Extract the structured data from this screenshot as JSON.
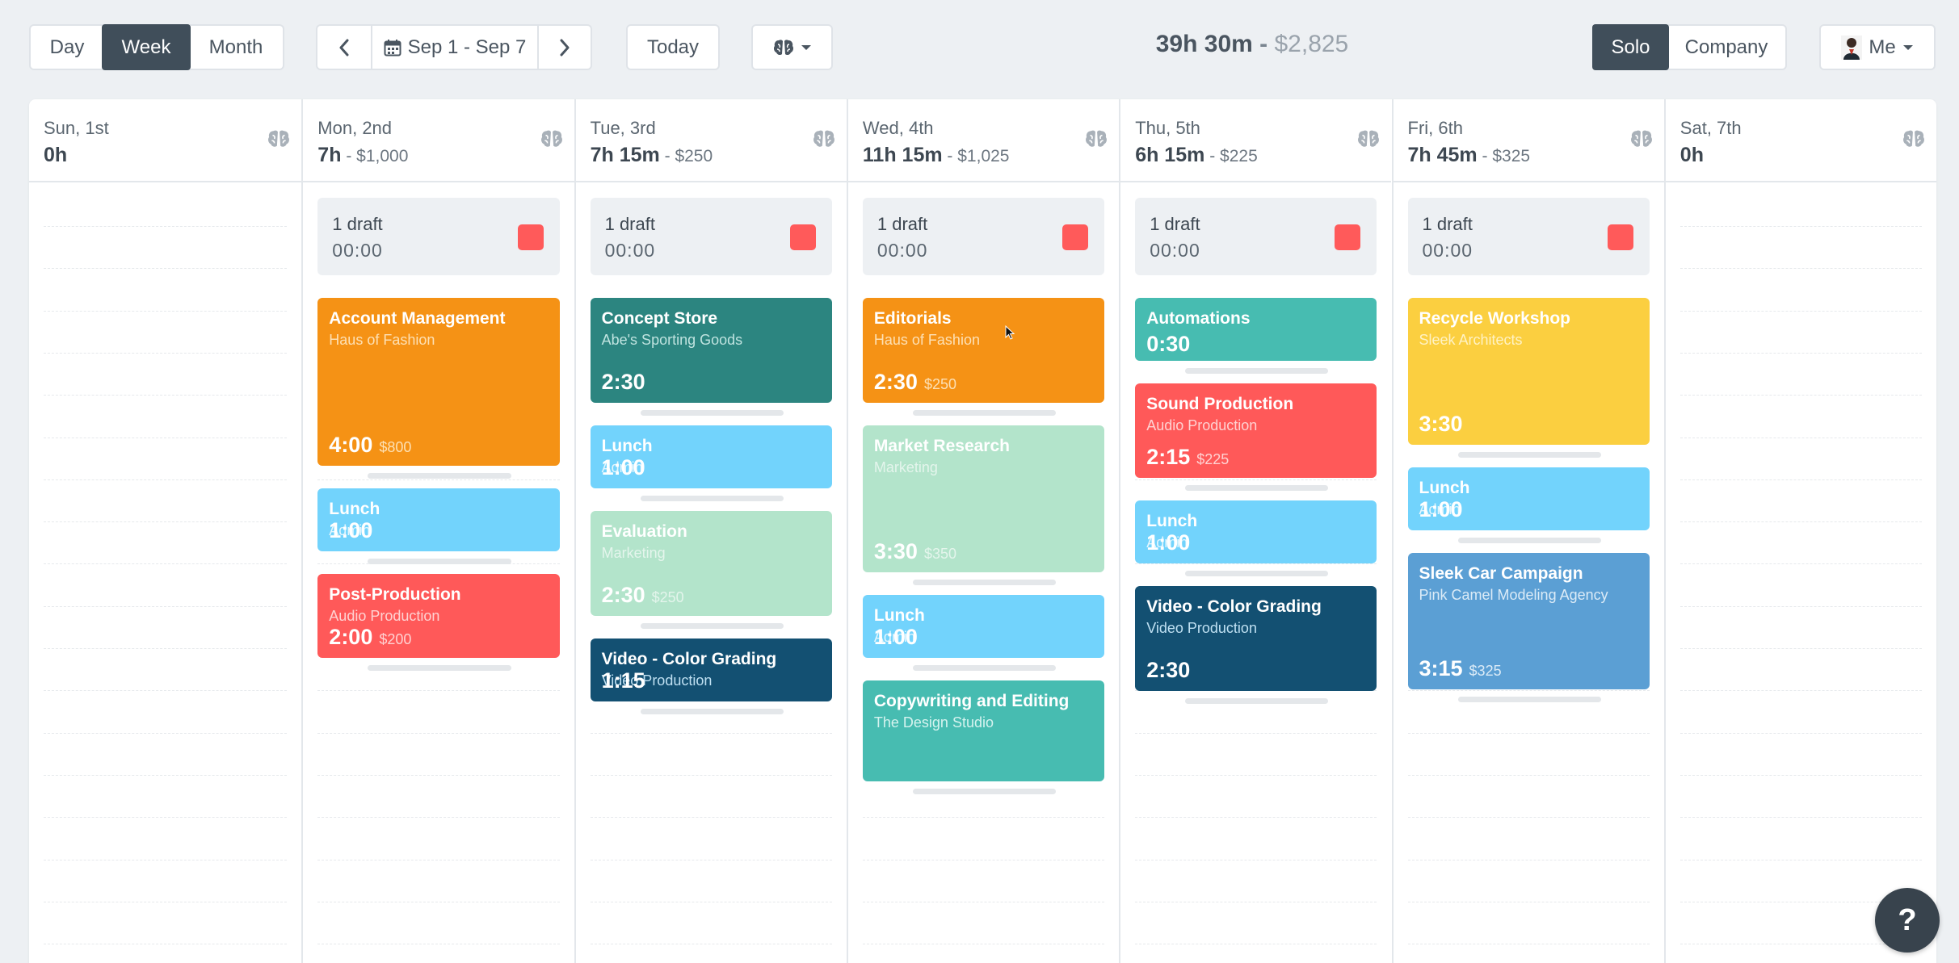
{
  "toolbar": {
    "views": [
      "Day",
      "Week",
      "Month"
    ],
    "active_view": "Week",
    "date_range": "Sep 1 - Sep 7",
    "today_label": "Today",
    "summary_hours": "39h 30m",
    "summary_sep": " - ",
    "summary_money": "$2,825",
    "modes": [
      "Solo",
      "Company"
    ],
    "active_mode": "Solo",
    "user_label": "Me"
  },
  "colors": {
    "orange": "#f59215",
    "teal_dark": "#2c8580",
    "light_blue": "#72d3fc",
    "mint": "#b3e4cb",
    "navy": "#135072",
    "red": "#ff5959",
    "teal": "#47bcb1",
    "yellow": "#fbcf40",
    "blue": "#5b9fd4"
  },
  "days": [
    {
      "name": "Sun, 1st",
      "hours": "0h",
      "money": "",
      "draft": null,
      "events": []
    },
    {
      "name": "Mon, 2nd",
      "hours": "7h",
      "money": "$1,000",
      "draft": {
        "label": "1 draft",
        "time": "00:00"
      },
      "events": [
        {
          "title": "Account Management",
          "client": "Haus of Fashion",
          "duration": "4:00",
          "amount": "$800",
          "color": "orange"
        },
        {
          "title": "Lunch",
          "client": "Admin",
          "duration": "1:00",
          "amount": "",
          "color": "light_blue"
        },
        {
          "title": "Post-Production",
          "client": "Audio Production",
          "duration": "2:00",
          "amount": "$200",
          "color": "red"
        }
      ]
    },
    {
      "name": "Tue, 3rd",
      "hours": "7h 15m",
      "money": "$250",
      "draft": {
        "label": "1 draft",
        "time": "00:00"
      },
      "events": [
        {
          "title": "Concept Store",
          "client": "Abe's Sporting Goods",
          "duration": "2:30",
          "amount": "",
          "color": "teal_dark"
        },
        {
          "title": "Lunch",
          "client": "Admin",
          "duration": "1:00",
          "amount": "",
          "color": "light_blue"
        },
        {
          "title": "Evaluation",
          "client": "Marketing",
          "duration": "2:30",
          "amount": "$250",
          "color": "mint"
        },
        {
          "title": "Video - Color Grading",
          "client": "Video Production",
          "duration": "1:15",
          "amount": "",
          "color": "navy"
        }
      ]
    },
    {
      "name": "Wed, 4th",
      "hours": "11h 15m",
      "money": "$1,025",
      "draft": {
        "label": "1 draft",
        "time": "00:00"
      },
      "events": [
        {
          "title": "Editorials",
          "client": "Haus of Fashion",
          "duration": "2:30",
          "amount": "$250",
          "color": "orange"
        },
        {
          "title": "Market Research",
          "client": "Marketing",
          "duration": "3:30",
          "amount": "$350",
          "color": "mint"
        },
        {
          "title": "Lunch",
          "client": "Admin",
          "duration": "1:00",
          "amount": "",
          "color": "light_blue"
        },
        {
          "title": "Copywriting and Editing",
          "client": "The Design Studio",
          "duration": "",
          "amount": "",
          "color": "teal"
        }
      ]
    },
    {
      "name": "Thu, 5th",
      "hours": "6h 15m",
      "money": "$225",
      "draft": {
        "label": "1 draft",
        "time": "00:00"
      },
      "events": [
        {
          "title": "Automations",
          "client": "",
          "duration": "0:30",
          "amount": "",
          "color": "teal"
        },
        {
          "title": "Sound Production",
          "client": "Audio Production",
          "duration": "2:15",
          "amount": "$225",
          "color": "red"
        },
        {
          "title": "Lunch",
          "client": "Admin",
          "duration": "1:00",
          "amount": "",
          "color": "light_blue"
        },
        {
          "title": "Video - Color Grading",
          "client": "Video Production",
          "duration": "2:30",
          "amount": "",
          "color": "navy"
        }
      ]
    },
    {
      "name": "Fri, 6th",
      "hours": "7h 45m",
      "money": "$325",
      "draft": {
        "label": "1 draft",
        "time": "00:00"
      },
      "events": [
        {
          "title": "Recycle Workshop",
          "client": "Sleek Architects",
          "duration": "3:30",
          "amount": "",
          "color": "yellow"
        },
        {
          "title": "Lunch",
          "client": "Admin",
          "duration": "1:00",
          "amount": "",
          "color": "light_blue"
        },
        {
          "title": "Sleek Car Campaign",
          "client": "Pink Camel Modeling Agency",
          "duration": "3:15",
          "amount": "$325",
          "color": "blue"
        }
      ]
    },
    {
      "name": "Sat, 7th",
      "hours": "0h",
      "money": "",
      "draft": null,
      "events": []
    }
  ],
  "help_label": "?"
}
